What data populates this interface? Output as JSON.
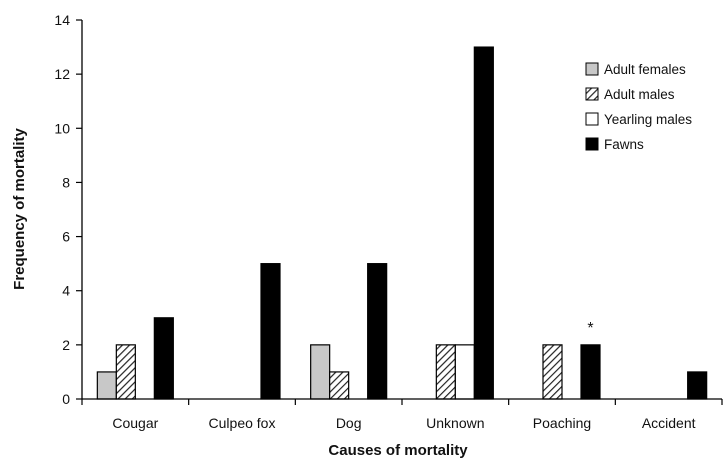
{
  "chart_data": {
    "type": "bar",
    "title": "",
    "xlabel": "Causes of mortality",
    "ylabel": "Frequency of mortality",
    "ylim": [
      0,
      14
    ],
    "yticks": [
      0,
      2,
      4,
      6,
      8,
      10,
      12,
      14
    ],
    "grid": false,
    "legend_position": "top-right",
    "categories": [
      "Cougar",
      "Culpeo fox",
      "Dog",
      "Unknown",
      "Poaching",
      "Accident"
    ],
    "series": [
      {
        "name": "Adult females",
        "values": [
          1,
          0,
          2,
          0,
          0,
          0
        ],
        "fill": "#c8c8c8",
        "pattern": "solid"
      },
      {
        "name": "Adult males",
        "values": [
          2,
          0,
          1,
          2,
          2,
          0
        ],
        "fill": "#ffffff",
        "pattern": "diagonal-hatch"
      },
      {
        "name": "Yearling males",
        "values": [
          0,
          0,
          0,
          2,
          0,
          0
        ],
        "fill": "#ffffff",
        "pattern": "solid"
      },
      {
        "name": "Fawns",
        "values": [
          3,
          5,
          5,
          13,
          2,
          1
        ],
        "fill": "#000000",
        "pattern": "solid"
      }
    ],
    "annotations": [
      {
        "text": "*",
        "category": "Poaching",
        "series": "Fawns"
      }
    ]
  }
}
